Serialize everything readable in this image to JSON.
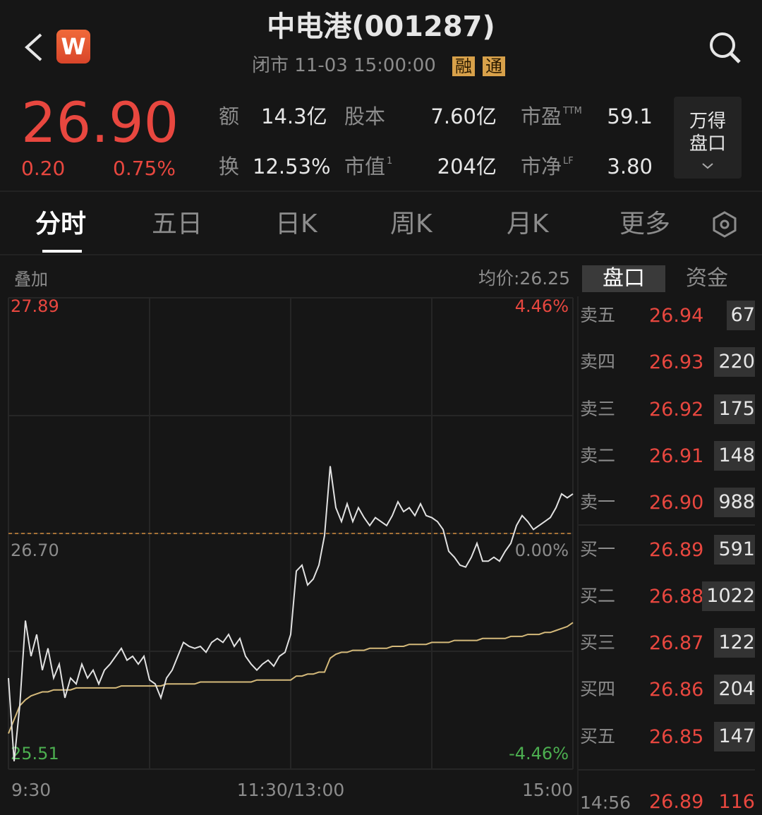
{
  "header": {
    "logo": "W",
    "title": "中电港(001287)",
    "status": "闭市 11-03 15:00:00",
    "tags": [
      "融",
      "通"
    ]
  },
  "quote": {
    "price": "26.90",
    "change": "0.20",
    "change_pct": "0.75%",
    "stats": [
      {
        "label": "额",
        "value": "14.3亿"
      },
      {
        "label": "股本",
        "value": "7.60亿"
      },
      {
        "label": "市盈",
        "sup": "TTM",
        "value": "59.1"
      },
      {
        "label": "换",
        "value": "12.53%"
      },
      {
        "label": "市值",
        "sup": "1",
        "value": "204亿"
      },
      {
        "label": "市净",
        "sup": "LF",
        "value": "3.80"
      }
    ],
    "button": [
      "万得",
      "盘口"
    ]
  },
  "tabs": [
    "分时",
    "五日",
    "日K",
    "周K",
    "月K",
    "更多"
  ],
  "panel_tabs": [
    "盘口",
    "资金"
  ],
  "chart_data": {
    "type": "line",
    "overlay": "叠加",
    "average_price": "均价:26.25",
    "x_labels": [
      "9:30",
      "11:30/13:00",
      "15:00"
    ],
    "ylim": [
      25.51,
      27.89
    ],
    "yticks": [
      27.89,
      {
        "value": 26.7,
        "label": "26.70"
      },
      25.51
    ],
    "y2lim": [
      -4.46,
      4.46
    ],
    "y2ticks": [
      {
        "value": 4.46,
        "label": "4.46%"
      },
      {
        "value": 0,
        "label": "0.00%"
      },
      {
        "value": -4.46,
        "label": "-4.46%"
      }
    ],
    "reference_color": "#d08a3c",
    "series": [
      {
        "color": "#e2e2e2",
        "values": [
          25.97,
          25.55,
          25.83,
          26.26,
          26.08,
          26.19,
          26.01,
          26.12,
          25.97,
          26.04,
          25.87,
          25.97,
          25.94,
          26.04,
          25.97,
          26.01,
          25.94,
          26.01,
          26.04,
          26.08,
          26.12,
          26.06,
          26.08,
          26.04,
          26.08,
          25.96,
          25.94,
          25.87,
          25.97,
          26.01,
          26.08,
          26.15,
          26.13,
          26.12,
          26.13,
          26.1,
          26.15,
          26.17,
          26.15,
          26.19,
          26.13,
          26.17,
          26.08,
          26.04,
          26.01,
          26.04,
          26.06,
          26.03,
          26.08,
          26.1,
          26.19,
          26.51,
          26.54,
          26.44,
          26.47,
          26.54,
          26.69,
          27.04,
          26.83,
          26.76,
          26.85,
          26.76,
          26.83,
          26.78,
          26.74,
          26.78,
          26.76,
          26.74,
          26.79,
          26.86,
          26.81,
          26.83,
          26.79,
          26.85,
          26.79,
          26.78,
          26.76,
          26.72,
          26.61,
          26.58,
          26.54,
          26.53,
          26.58,
          26.65,
          26.56,
          26.56,
          26.58,
          26.56,
          26.61,
          26.65,
          26.74,
          26.79,
          26.76,
          26.72,
          26.74,
          26.76,
          26.78,
          26.83,
          26.9,
          26.88,
          26.9
        ]
      },
      {
        "color": "#d4b97a",
        "values": [
          25.69,
          25.76,
          25.83,
          25.86,
          25.88,
          25.89,
          25.9,
          25.9,
          25.91,
          25.91,
          25.91,
          25.91,
          25.92,
          25.92,
          25.92,
          25.92,
          25.92,
          25.92,
          25.92,
          25.92,
          25.93,
          25.93,
          25.93,
          25.93,
          25.93,
          25.93,
          25.93,
          25.93,
          25.94,
          25.94,
          25.94,
          25.94,
          25.94,
          25.94,
          25.95,
          25.95,
          25.95,
          25.95,
          25.95,
          25.95,
          25.95,
          25.95,
          25.95,
          25.95,
          25.96,
          25.96,
          25.96,
          25.96,
          25.96,
          25.96,
          25.96,
          25.98,
          25.98,
          25.99,
          25.99,
          26.0,
          26.0,
          26.07,
          26.09,
          26.1,
          26.1,
          26.11,
          26.11,
          26.11,
          26.12,
          26.12,
          26.12,
          26.12,
          26.13,
          26.13,
          26.13,
          26.14,
          26.14,
          26.14,
          26.14,
          26.15,
          26.15,
          26.15,
          26.15,
          26.16,
          26.16,
          26.16,
          26.16,
          26.16,
          26.17,
          26.17,
          26.17,
          26.17,
          26.17,
          26.18,
          26.18,
          26.18,
          26.19,
          26.19,
          26.19,
          26.2,
          26.2,
          26.21,
          26.22,
          26.23,
          26.25
        ]
      }
    ]
  },
  "order_book": {
    "rows": [
      [
        "卖五",
        "26.94",
        "67"
      ],
      [
        "卖四",
        "26.93",
        "220"
      ],
      [
        "卖三",
        "26.92",
        "175"
      ],
      [
        "卖二",
        "26.91",
        "148"
      ],
      [
        "卖一",
        "26.90",
        "988"
      ],
      [
        "买一",
        "26.89",
        "591"
      ],
      [
        "买二",
        "26.88",
        "1022"
      ],
      [
        "买三",
        "26.87",
        "122"
      ],
      [
        "买四",
        "26.86",
        "204"
      ],
      [
        "买五",
        "26.85",
        "147"
      ]
    ],
    "last_trade": [
      "14:56",
      "26.89",
      "116"
    ]
  }
}
